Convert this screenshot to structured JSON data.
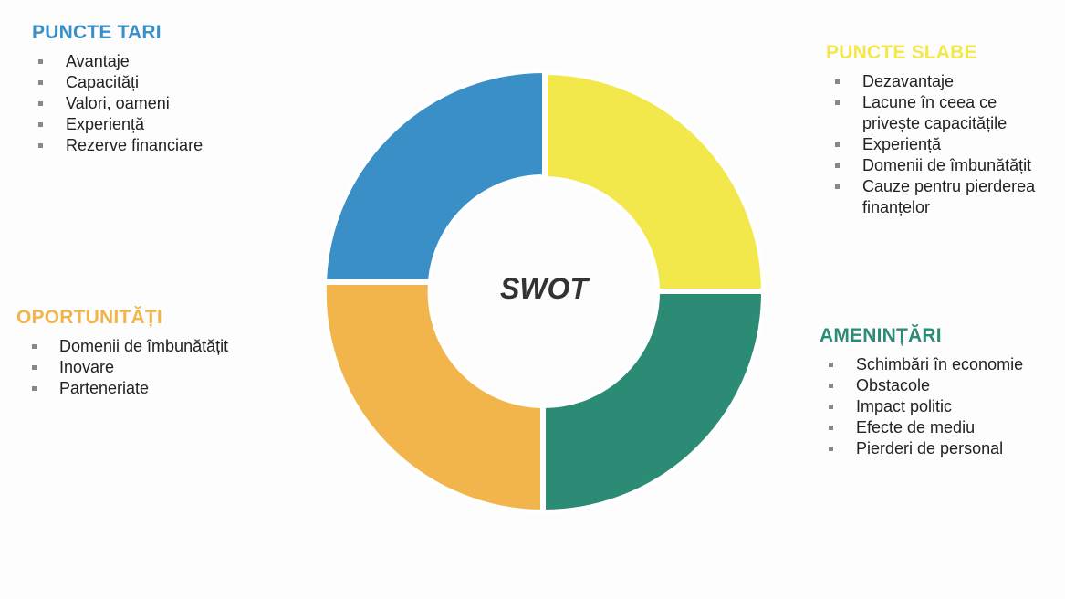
{
  "center": "SWOT",
  "quadrants": [
    {
      "title": "PUNCTE TARI",
      "items": [
        "Avantaje",
        "Capacități",
        "Valori, oameni",
        "Experiență",
        "Rezerve financiare"
      ]
    },
    {
      "title": "PUNCTE SLABE",
      "items": [
        "Dezavantaje",
        "Lacune în ceea ce privește capacitățile",
        "Experiență",
        "Domenii de îmbunătățit",
        "Cauze pentru pierderea finanțelor"
      ]
    },
    {
      "title": "OPORTUNITĂȚI",
      "items": [
        "Domenii de îmbunătățit",
        "Inovare",
        "Parteneriate"
      ]
    },
    {
      "title": "AMENINȚĂRI",
      "items": [
        "Schimbări în economie",
        "Obstacole",
        "Impact politic",
        "Efecte de mediu",
        "Pierderi de personal"
      ]
    }
  ]
}
